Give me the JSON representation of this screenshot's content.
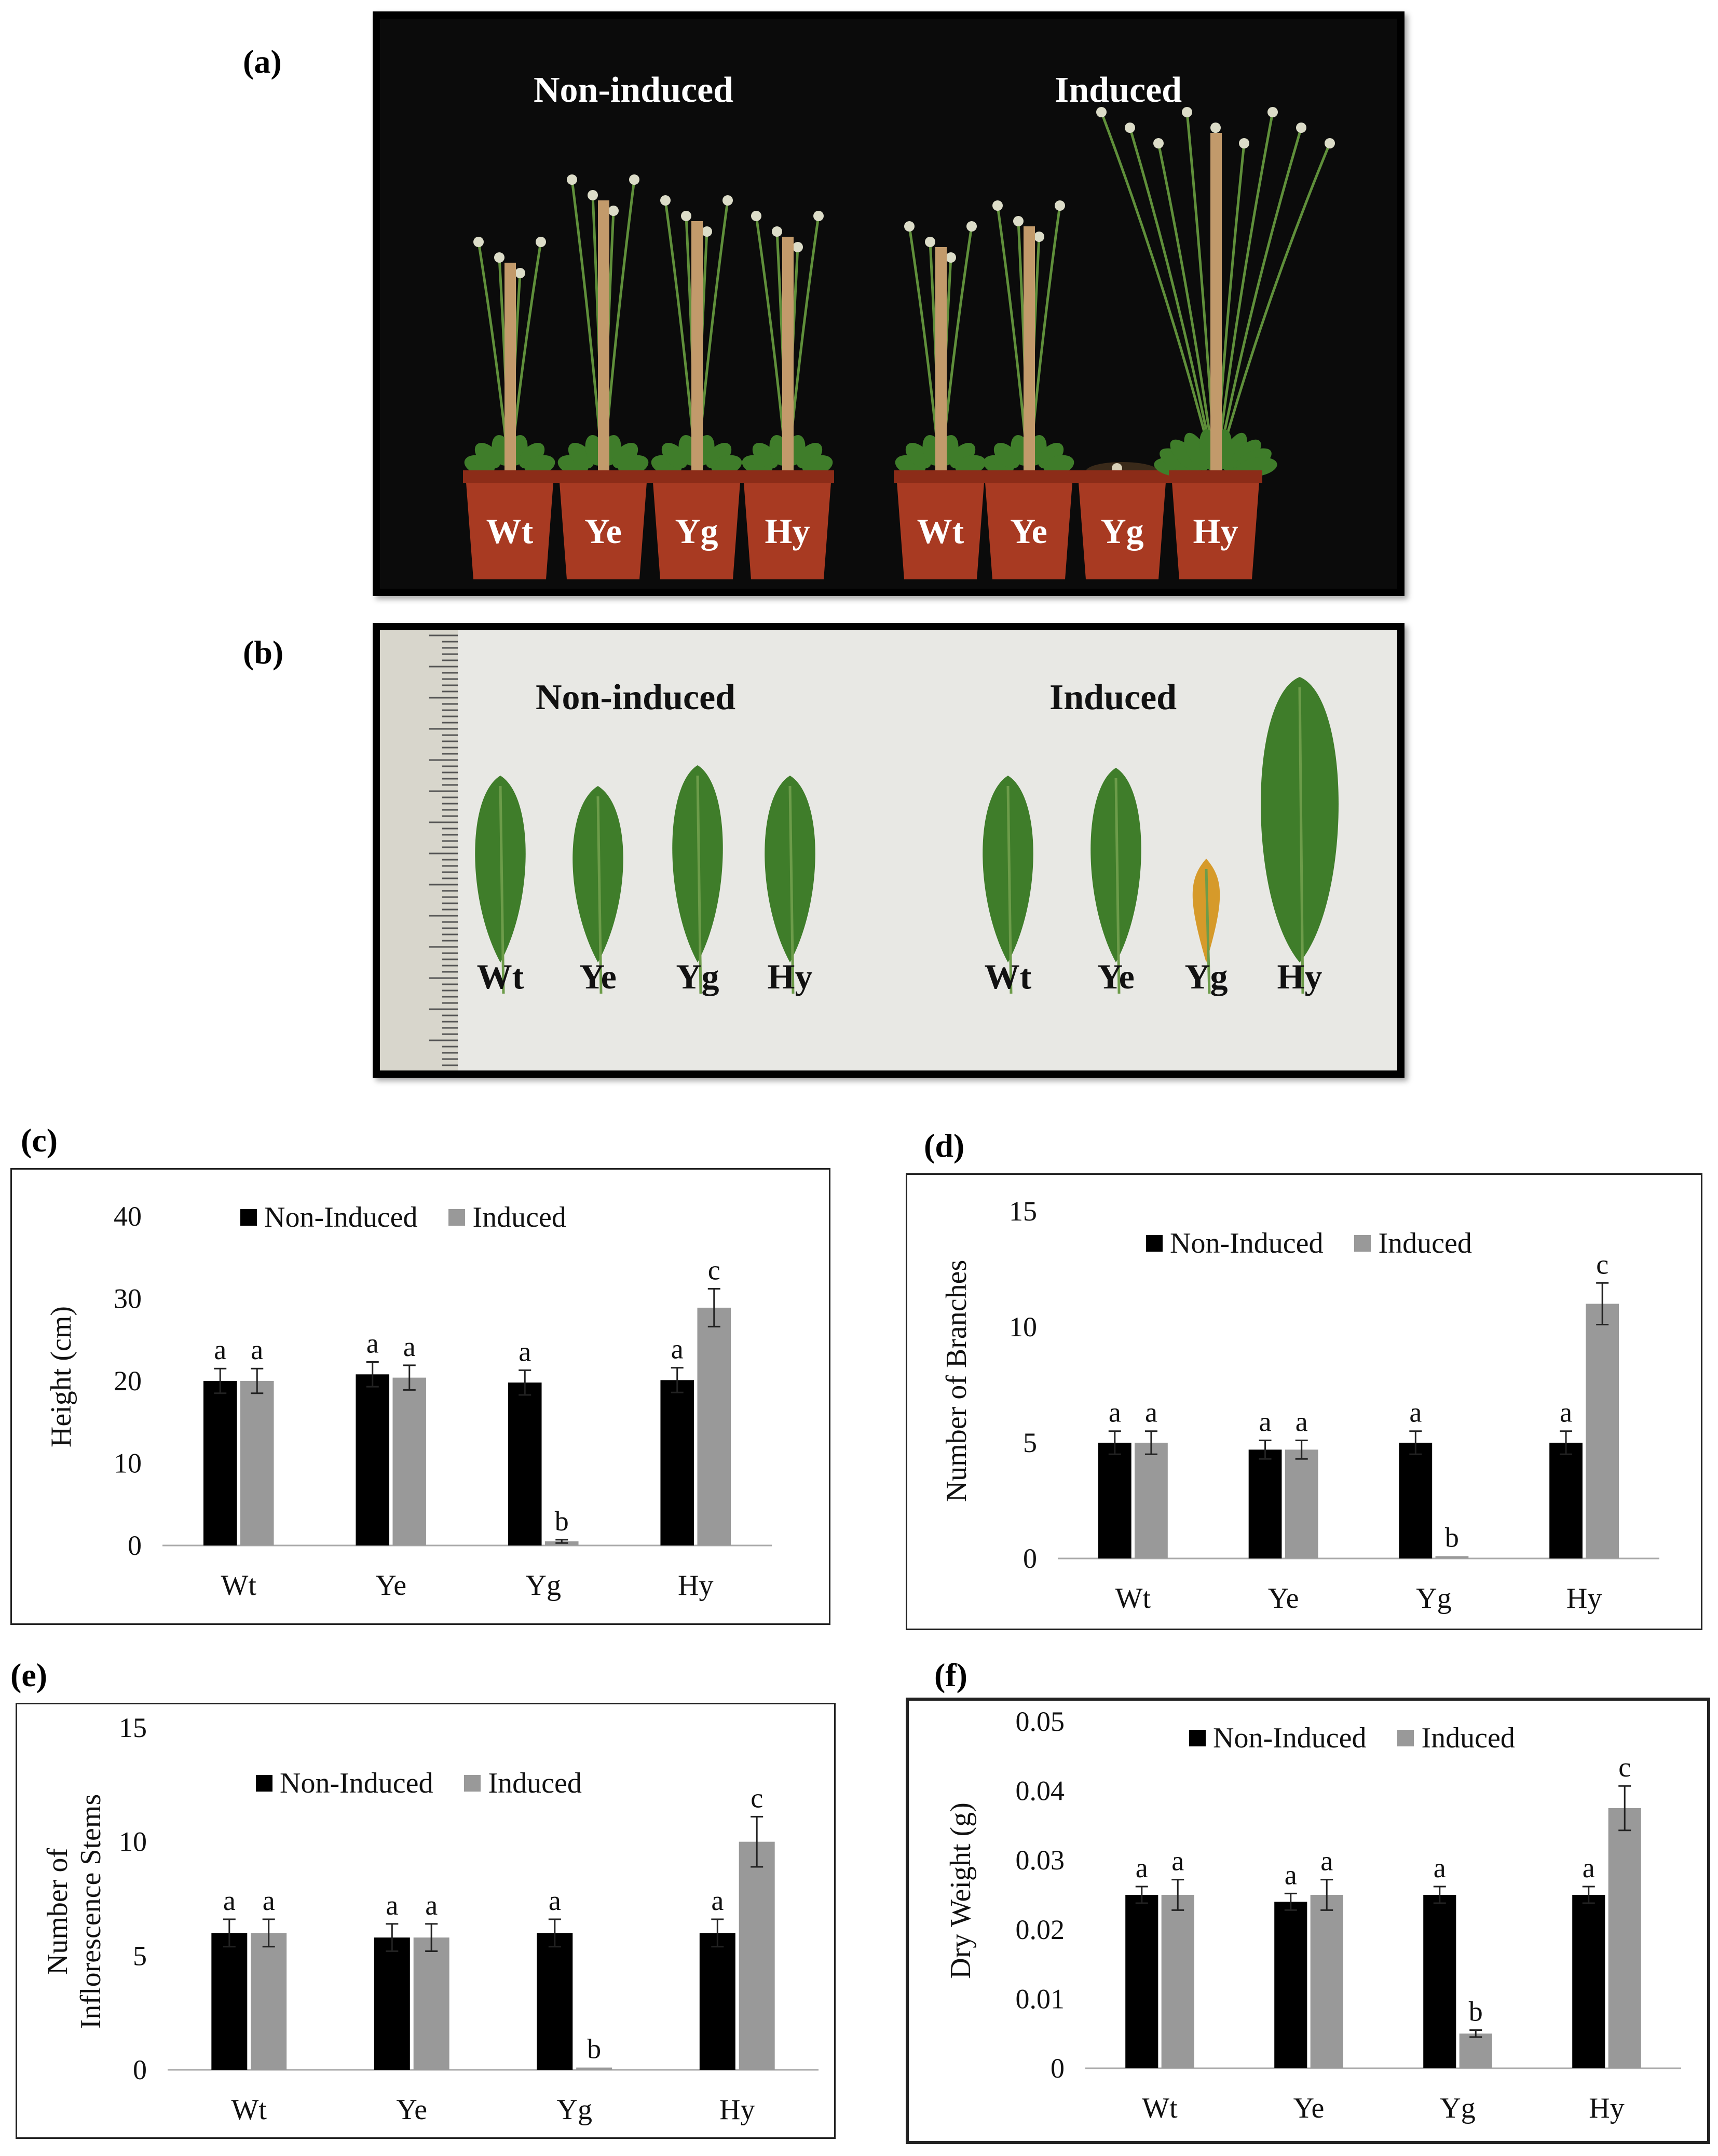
{
  "panels": {
    "a": {
      "label": "(a)",
      "group_left": "Non-induced",
      "group_right": "Induced",
      "plants": [
        "Wt",
        "Ye",
        "Yg",
        "Hy",
        "Wt",
        "Ye",
        "Yg",
        "Hy"
      ]
    },
    "b": {
      "label": "(b)",
      "group_left": "Non-induced",
      "group_right": "Induced",
      "leaves": [
        "Wt",
        "Ye",
        "Yg",
        "Hy",
        "Wt",
        "Ye",
        "Yg",
        "Hy"
      ]
    }
  },
  "colors": {
    "non_induced": "#000000",
    "induced": "#999999",
    "photo_a_bg": "#0b0b0b",
    "photo_b_bg": "#e8e8e4",
    "pot": "#a83a22",
    "stick": "#c29a6b",
    "leaf": "#3f7d2a",
    "leaf_yellow": "#d69a2a"
  },
  "chart_data": [
    {
      "panel": "(c)",
      "type": "bar",
      "categories": [
        "Wt",
        "Ye",
        "Yg",
        "Hy"
      ],
      "series": [
        {
          "name": "Non-Induced",
          "values": [
            20,
            20.8,
            19.8,
            20.1
          ],
          "errors": [
            1.5,
            1.5,
            1.5,
            1.5
          ],
          "letters": [
            "a",
            "a",
            "a",
            "a"
          ]
        },
        {
          "name": "Induced",
          "values": [
            20,
            20.4,
            0.5,
            28.9
          ],
          "errors": [
            1.5,
            1.5,
            0.2,
            2.3
          ],
          "letters": [
            "a",
            "a",
            "b",
            "c"
          ]
        }
      ],
      "ylabel": "Height (cm)",
      "ylim": [
        0,
        40
      ],
      "yticks": [
        "0",
        "10",
        "20",
        "30",
        "40"
      ],
      "legend": "top"
    },
    {
      "panel": "(d)",
      "type": "bar",
      "categories": [
        "Wt",
        "Ye",
        "Yg",
        "Hy"
      ],
      "series": [
        {
          "name": "Non-Induced",
          "values": [
            5,
            4.7,
            5,
            5
          ],
          "errors": [
            0.5,
            0.4,
            0.5,
            0.5
          ],
          "letters": [
            "a",
            "a",
            "a",
            "a"
          ]
        },
        {
          "name": "Induced",
          "values": [
            5,
            4.7,
            0.1,
            11
          ],
          "errors": [
            0.5,
            0.4,
            0.0,
            0.9
          ],
          "letters": [
            "a",
            "a",
            "b",
            "c"
          ]
        }
      ],
      "ylabel": "Number of Branches",
      "ylim": [
        0,
        15
      ],
      "yticks": [
        "0",
        "5",
        "10",
        "15"
      ],
      "legend": "top"
    },
    {
      "panel": "(e)",
      "type": "bar",
      "categories": [
        "Wt",
        "Ye",
        "Yg",
        "Hy"
      ],
      "series": [
        {
          "name": "Non-Induced",
          "values": [
            6,
            5.8,
            6,
            6
          ],
          "errors": [
            0.6,
            0.6,
            0.6,
            0.6
          ],
          "letters": [
            "a",
            "a",
            "a",
            "a"
          ]
        },
        {
          "name": "Induced",
          "values": [
            6,
            5.8,
            0.1,
            10
          ],
          "errors": [
            0.6,
            0.6,
            0.0,
            1.1
          ],
          "letters": [
            "a",
            "a",
            "b",
            "c"
          ]
        }
      ],
      "ylabel": "Number of Inflorescence Stems",
      "ylabel_lines": [
        "Number of",
        "Inflorescence Stems"
      ],
      "ylim": [
        0,
        15
      ],
      "yticks": [
        "0",
        "5",
        "10",
        "15"
      ],
      "legend": "top"
    },
    {
      "panel": "(f)",
      "type": "bar",
      "categories": [
        "Wt",
        "Ye",
        "Yg",
        "Hy"
      ],
      "series": [
        {
          "name": "Non-Induced",
          "values": [
            0.025,
            0.024,
            0.025,
            0.025
          ],
          "errors": [
            0.0012,
            0.0012,
            0.0012,
            0.0012
          ],
          "letters": [
            "a",
            "a",
            "a",
            "a"
          ]
        },
        {
          "name": "Induced",
          "values": [
            0.025,
            0.025,
            0.005,
            0.0375
          ],
          "errors": [
            0.0022,
            0.0022,
            0.0005,
            0.0032
          ],
          "letters": [
            "a",
            "a",
            "b",
            "c"
          ]
        }
      ],
      "ylabel": "Dry Weight (g)",
      "ylim": [
        0,
        0.05
      ],
      "yticks": [
        "0",
        "0.01",
        "0.02",
        "0.03",
        "0.04",
        "0.05"
      ],
      "legend": "top"
    }
  ]
}
